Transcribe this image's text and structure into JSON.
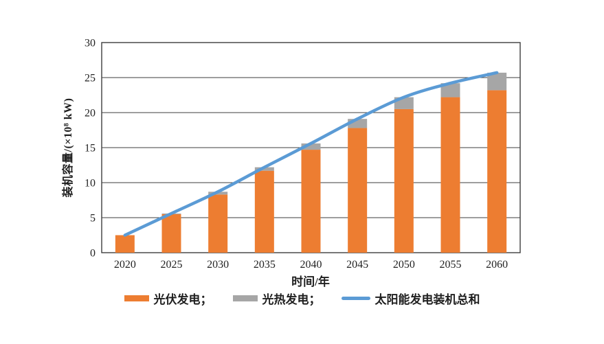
{
  "page": {
    "background": "#ffffff"
  },
  "axes": {
    "xlabel": "时间/年",
    "ylabel": "装机容量/(×10⁸ kW)"
  },
  "chart_data": {
    "type": "bar",
    "stacked": true,
    "title": "",
    "xlabel": "时间/年",
    "ylabel": "装机容量/(×10⁸ kW)",
    "categories": [
      "2020",
      "2025",
      "2030",
      "2035",
      "2040",
      "2045",
      "2050",
      "2055",
      "2060"
    ],
    "series": [
      {
        "name": "光伏发电",
        "type": "bar",
        "color": "#ED7D31",
        "values": [
          2.5,
          5.5,
          8.3,
          11.7,
          14.7,
          17.8,
          20.5,
          22.2,
          23.2
        ]
      },
      {
        "name": "光热发电",
        "type": "bar",
        "color": "#A6A6A6",
        "values": [
          0,
          0.1,
          0.4,
          0.5,
          0.9,
          1.3,
          1.7,
          2.0,
          2.5
        ]
      },
      {
        "name": "太阳能发电装机总和",
        "type": "line",
        "color": "#5B9BD5",
        "values": [
          2.5,
          5.6,
          8.7,
          12.2,
          15.6,
          19.1,
          22.2,
          24.2,
          25.7
        ]
      }
    ],
    "ylim": [
      0,
      30
    ],
    "yticks": [
      0,
      5,
      10,
      15,
      20,
      25,
      30
    ],
    "grid": true,
    "frame": true,
    "legend_position": "bottom"
  },
  "legend": {
    "items": [
      {
        "label": "光伏发电；",
        "swatch": "rect",
        "color": "#ED7D31"
      },
      {
        "label": "光热发电；",
        "swatch": "rect",
        "color": "#A6A6A6"
      },
      {
        "label": "太阳能发电装机总和",
        "swatch": "line",
        "color": "#5B9BD5"
      }
    ]
  },
  "style_colors": {
    "axis_line": "#3d3d3d",
    "text": "#1f1f1f"
  }
}
